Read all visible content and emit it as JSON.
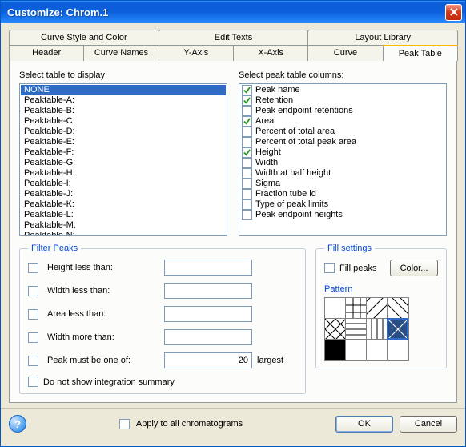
{
  "window": {
    "title": "Customize: Chrom.1"
  },
  "tabs": {
    "row1": [
      "Curve Style and Color",
      "Edit Texts",
      "Layout Library"
    ],
    "row2": [
      "Header",
      "Curve Names",
      "Y-Axis",
      "X-Axis",
      "Curve",
      "Peak Table"
    ],
    "active_row": 2,
    "active_index": 5
  },
  "table_list": {
    "label": "Select table to display:",
    "items": [
      "NONE",
      "Peaktable-A:",
      "Peaktable-B:",
      "Peaktable-C:",
      "Peaktable-D:",
      "Peaktable-E:",
      "Peaktable-F:",
      "Peaktable-G:",
      "Peaktable-H:",
      "Peaktable-I:",
      "Peaktable-J:",
      "Peaktable-K:",
      "Peaktable-L:",
      "Peaktable-M:",
      "Peaktable-N:"
    ],
    "selected_index": 0
  },
  "column_list": {
    "label": "Select peak table columns:",
    "items": [
      {
        "label": "Peak name",
        "checked": true
      },
      {
        "label": "Retention",
        "checked": true
      },
      {
        "label": "Peak endpoint retentions",
        "checked": false
      },
      {
        "label": "Area",
        "checked": true
      },
      {
        "label": "Percent of total area",
        "checked": false
      },
      {
        "label": "Percent of total peak area",
        "checked": false
      },
      {
        "label": "Height",
        "checked": true
      },
      {
        "label": "Width",
        "checked": false
      },
      {
        "label": "Width at half height",
        "checked": false
      },
      {
        "label": "Sigma",
        "checked": false
      },
      {
        "label": "Fraction tube id",
        "checked": false
      },
      {
        "label": "Type of peak limits",
        "checked": false
      },
      {
        "label": "Peak endpoint heights",
        "checked": false
      }
    ],
    "check_color": "#229a1e"
  },
  "filter": {
    "legend": "Filter Peaks",
    "rows": [
      {
        "label": "Height less than:",
        "value": "",
        "suffix": ""
      },
      {
        "label": "Width less than:",
        "value": "",
        "suffix": ""
      },
      {
        "label": "Area less than:",
        "value": "",
        "suffix": ""
      },
      {
        "label": "Width more than:",
        "value": "",
        "suffix": ""
      },
      {
        "label": "Peak must be one of:",
        "value": "20",
        "suffix": "largest"
      }
    ],
    "summary_label": "Do not show integration summary"
  },
  "fill": {
    "legend": "Fill settings",
    "fill_peaks_label": "Fill peaks",
    "color_button": "Color...",
    "pattern_label": "Pattern",
    "selected_index": 7,
    "selected_color": "#2a4f86",
    "patterns": [
      {
        "type": "blank"
      },
      {
        "type": "grid"
      },
      {
        "type": "diag-r"
      },
      {
        "type": "diag-l"
      },
      {
        "type": "hatch"
      },
      {
        "type": "horiz"
      },
      {
        "type": "vert"
      },
      {
        "type": "crosshatch"
      },
      {
        "type": "solid",
        "color": "#000000"
      },
      {
        "type": "blank"
      },
      {
        "type": "blank"
      },
      {
        "type": "blank"
      }
    ]
  },
  "footer": {
    "apply_all": "Apply to all chromatograms",
    "ok": "OK",
    "cancel": "Cancel"
  }
}
